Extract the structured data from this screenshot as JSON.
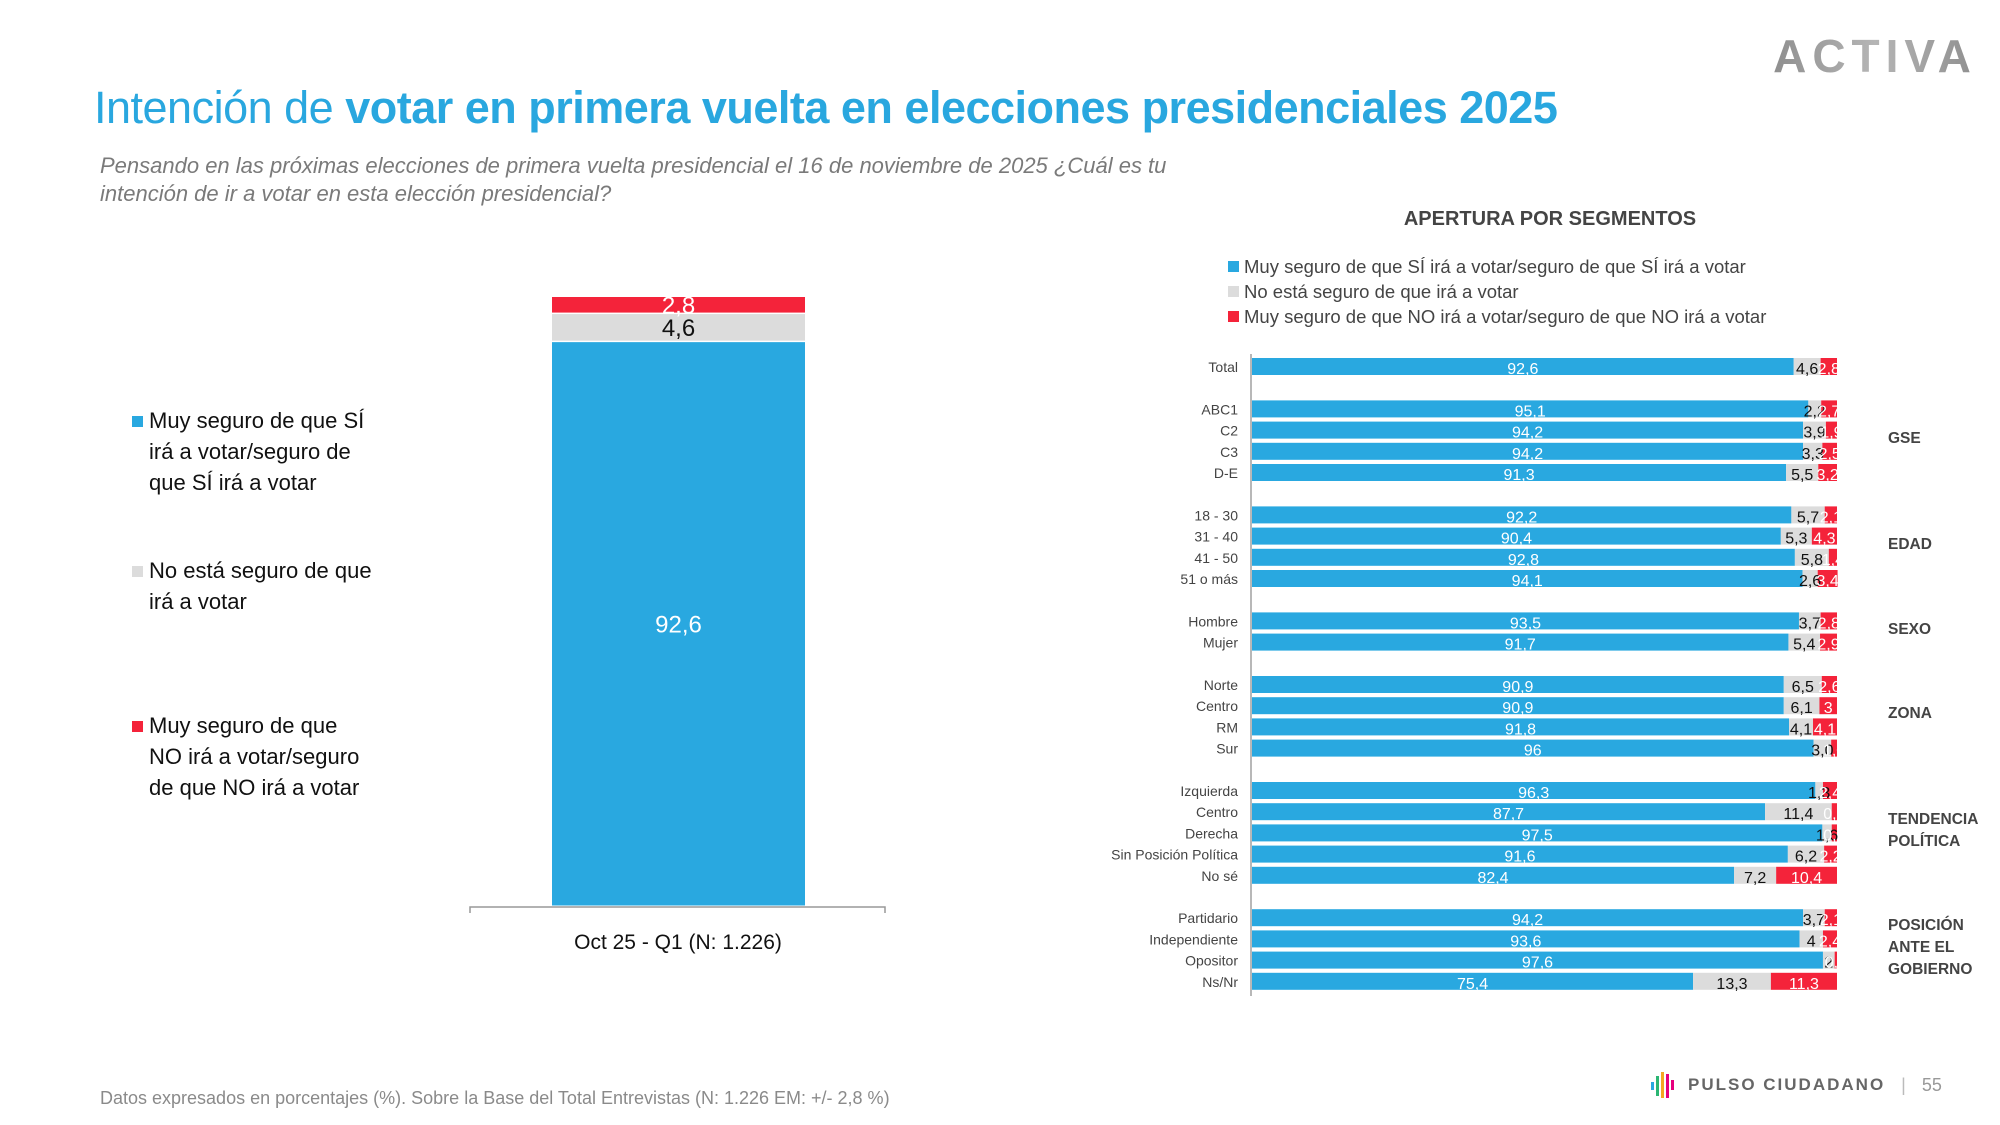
{
  "header": {
    "title_light": "Intención de ",
    "title_bold": "votar en primera vuelta en elecciones presidenciales 2025",
    "subtitle": "Pensando en las próximas elecciones de primera vuelta presidencial el 16 de noviembre de  2025 ¿Cuál es tu intención de ir a votar en esta elección presidencial?",
    "logo": "ACTIVA"
  },
  "colors": {
    "si": "#29a8e0",
    "no_seguro": "#dcdcdc",
    "no": "#f4233a",
    "title": "#29a7df"
  },
  "footer": {
    "note": "Datos expresados en porcentajes (%). Sobre la Base del Total Entrevistas (N: 1.226  EM: +/- 2,8 %)",
    "brand": "PULSO CIUDADANO",
    "separator": "|",
    "page": "55"
  },
  "chart_data": [
    {
      "type": "bar",
      "stacked": true,
      "orientation": "vertical",
      "categories": [
        "Oct 25 - Q1 (N: 1.226)"
      ],
      "series": [
        {
          "name": "Muy seguro de que SÍ irá a votar/seguro de que SÍ irá a votar",
          "values": [
            92.6
          ],
          "labels": [
            "92,6"
          ]
        },
        {
          "name": "No está seguro de que irá a votar",
          "values": [
            4.6
          ],
          "labels": [
            "4,6"
          ]
        },
        {
          "name": "Muy seguro de que NO irá a votar/seguro de que NO irá a votar",
          "values": [
            2.8
          ],
          "labels": [
            "2,8"
          ]
        }
      ],
      "ylim": [
        0,
        100
      ],
      "legend": "left",
      "title": "",
      "xlabel": "",
      "ylabel": ""
    },
    {
      "type": "bar",
      "stacked": true,
      "orientation": "horizontal",
      "title": "APERTURA POR SEGMENTOS",
      "legend": "top",
      "xlim": [
        0,
        100
      ],
      "legend_entries": [
        "Muy seguro de que SÍ irá a votar/seguro de que SÍ irá a votar",
        "No está seguro de que irá a votar",
        "Muy seguro de que NO irá a votar/seguro de que NO irá a votar"
      ],
      "groups": [
        {
          "label": "",
          "rows": [
            {
              "category": "Total",
              "values": [
                92.6,
                4.6,
                2.8
              ],
              "labels": [
                "92,6",
                "4,6",
                "2,8"
              ]
            }
          ]
        },
        {
          "label": "GSE",
          "rows": [
            {
              "category": "ABC1",
              "values": [
                95.1,
                2.2,
                2.7
              ],
              "labels": [
                "95,1",
                "2,2",
                "2,7"
              ]
            },
            {
              "category": "C2",
              "values": [
                94.2,
                3.9,
                1.9
              ],
              "labels": [
                "94,2",
                "3,9",
                "1,9"
              ]
            },
            {
              "category": "C3",
              "values": [
                94.2,
                3.3,
                2.5
              ],
              "labels": [
                "94,2",
                "3,3",
                "2,5"
              ]
            },
            {
              "category": "D-E",
              "values": [
                91.3,
                5.5,
                3.2
              ],
              "labels": [
                "91,3",
                "5,5",
                "3,2"
              ]
            }
          ]
        },
        {
          "label": "EDAD",
          "rows": [
            {
              "category": "18 - 30",
              "values": [
                92.2,
                5.7,
                2.1
              ],
              "labels": [
                "92,2",
                "5,7",
                "2,1"
              ]
            },
            {
              "category": "31 - 40",
              "values": [
                90.4,
                5.3,
                4.3
              ],
              "labels": [
                "90,4",
                "5,3",
                "4,3"
              ]
            },
            {
              "category": "41 - 50",
              "values": [
                92.8,
                5.8,
                1.4
              ],
              "labels": [
                "92,8",
                "5,8",
                "1,4"
              ]
            },
            {
              "category": "51 o más",
              "values": [
                94.1,
                2.6,
                3.4
              ],
              "labels": [
                "94,1",
                "2,6",
                "3,4"
              ]
            }
          ]
        },
        {
          "label": "SEXO",
          "rows": [
            {
              "category": "Hombre",
              "values": [
                93.5,
                3.7,
                2.8
              ],
              "labels": [
                "93,5",
                "3,7",
                "2,8"
              ]
            },
            {
              "category": "Mujer",
              "values": [
                91.7,
                5.4,
                2.9
              ],
              "labels": [
                "91,7",
                "5,4",
                "2,9"
              ]
            }
          ]
        },
        {
          "label": "ZONA",
          "rows": [
            {
              "category": "Norte",
              "values": [
                90.9,
                6.5,
                2.6
              ],
              "labels": [
                "90,9",
                "6,5",
                "2,6"
              ]
            },
            {
              "category": "Centro",
              "values": [
                90.9,
                6.1,
                3
              ],
              "labels": [
                "90,9",
                "6,1",
                "3"
              ]
            },
            {
              "category": "RM",
              "values": [
                91.8,
                4.1,
                4.1
              ],
              "labels": [
                "91,8",
                "4,1",
                "4,1"
              ]
            },
            {
              "category": "Sur",
              "values": [
                96,
                3.0,
                1.0
              ],
              "labels": [
                "96",
                "3,0",
                "1,0"
              ]
            }
          ]
        },
        {
          "label": "TENDENCIA POLÍTICA",
          "rows": [
            {
              "category": "Izquierda",
              "values": [
                96.3,
                1.3,
                2.4
              ],
              "labels": [
                "96,3",
                "1,3",
                "2,4"
              ]
            },
            {
              "category": "Centro ",
              "values": [
                87.7,
                11.4,
                0.9
              ],
              "labels": [
                "87,7",
                "11,4",
                "0,9"
              ]
            },
            {
              "category": "Derecha",
              "values": [
                97.5,
                1.6,
                0.9
              ],
              "labels": [
                "97,5",
                "1,6",
                "0,9"
              ]
            },
            {
              "category": "Sin Posición Política",
              "values": [
                91.6,
                6.2,
                2.2
              ],
              "labels": [
                "91,6",
                "6,2",
                "2,2"
              ]
            },
            {
              "category": "No sé",
              "values": [
                82.4,
                7.2,
                10.4
              ],
              "labels": [
                "82,4",
                "7,2",
                "10,4"
              ]
            }
          ]
        },
        {
          "label": "POSICIÓN ANTE EL GOBIERNO",
          "rows": [
            {
              "category": "Partidario ",
              "values": [
                94.2,
                3.7,
                2.1
              ],
              "labels": [
                "94,2",
                "3,7",
                "2,1"
              ]
            },
            {
              "category": "Independiente",
              "values": [
                93.6,
                4,
                2.4
              ],
              "labels": [
                "93,6",
                "4",
                "2,4"
              ]
            },
            {
              "category": "Opositor",
              "values": [
                97.6,
                2,
                0.4
              ],
              "labels": [
                "97,6",
                "2",
                "0,4"
              ]
            },
            {
              "category": "Ns/Nr",
              "values": [
                75.4,
                13.3,
                11.3
              ],
              "labels": [
                "75,4",
                "13,3",
                "11,3"
              ]
            }
          ]
        }
      ]
    }
  ]
}
